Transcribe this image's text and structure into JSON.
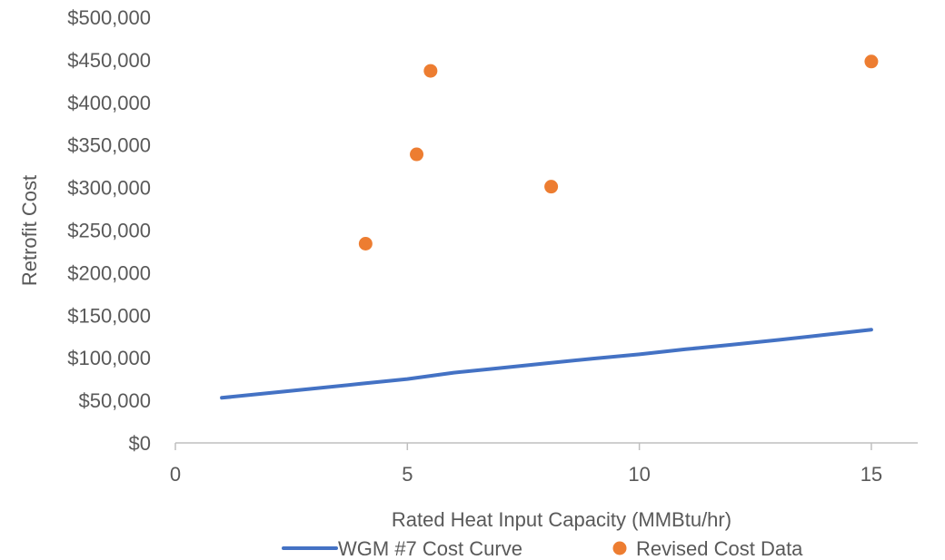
{
  "chart_data": {
    "type": "scatter",
    "title": "",
    "xlabel": "Rated Heat Input Capacity (MMBtu/hr)",
    "ylabel": "Retrofit Cost",
    "xlim": [
      0,
      16
    ],
    "ylim": [
      0,
      500000
    ],
    "x_ticks": [
      0,
      5,
      10,
      15
    ],
    "x_tick_labels": [
      "0",
      "5",
      "10",
      "15"
    ],
    "y_ticks": [
      0,
      50000,
      100000,
      150000,
      200000,
      250000,
      300000,
      350000,
      400000,
      450000,
      500000
    ],
    "y_tick_labels": [
      "$0",
      "$50,000",
      "$100,000",
      "$150,000",
      "$200,000",
      "$250,000",
      "$300,000",
      "$350,000",
      "$400,000",
      "$450,000",
      "$500,000"
    ],
    "grid": false,
    "legend_position": "bottom",
    "series": [
      {
        "name": "WGM #7 Cost Curve",
        "kind": "line",
        "color": "#4472C4",
        "x": [
          1,
          2,
          3,
          4,
          5,
          6,
          7,
          8,
          9,
          10,
          11,
          12,
          13,
          14,
          15
        ],
        "y": [
          53000,
          58500,
          64000,
          69500,
          75000,
          82500,
          88000,
          93500,
          99000,
          104000,
          110000,
          115500,
          121000,
          127000,
          133000
        ]
      },
      {
        "name": "Revised Cost Data",
        "kind": "scatter",
        "color": "#ED7D31",
        "x": [
          4.1,
          5.2,
          5.5,
          8.1,
          15.0
        ],
        "y": [
          234000,
          339000,
          437000,
          301000,
          448000
        ]
      }
    ]
  }
}
